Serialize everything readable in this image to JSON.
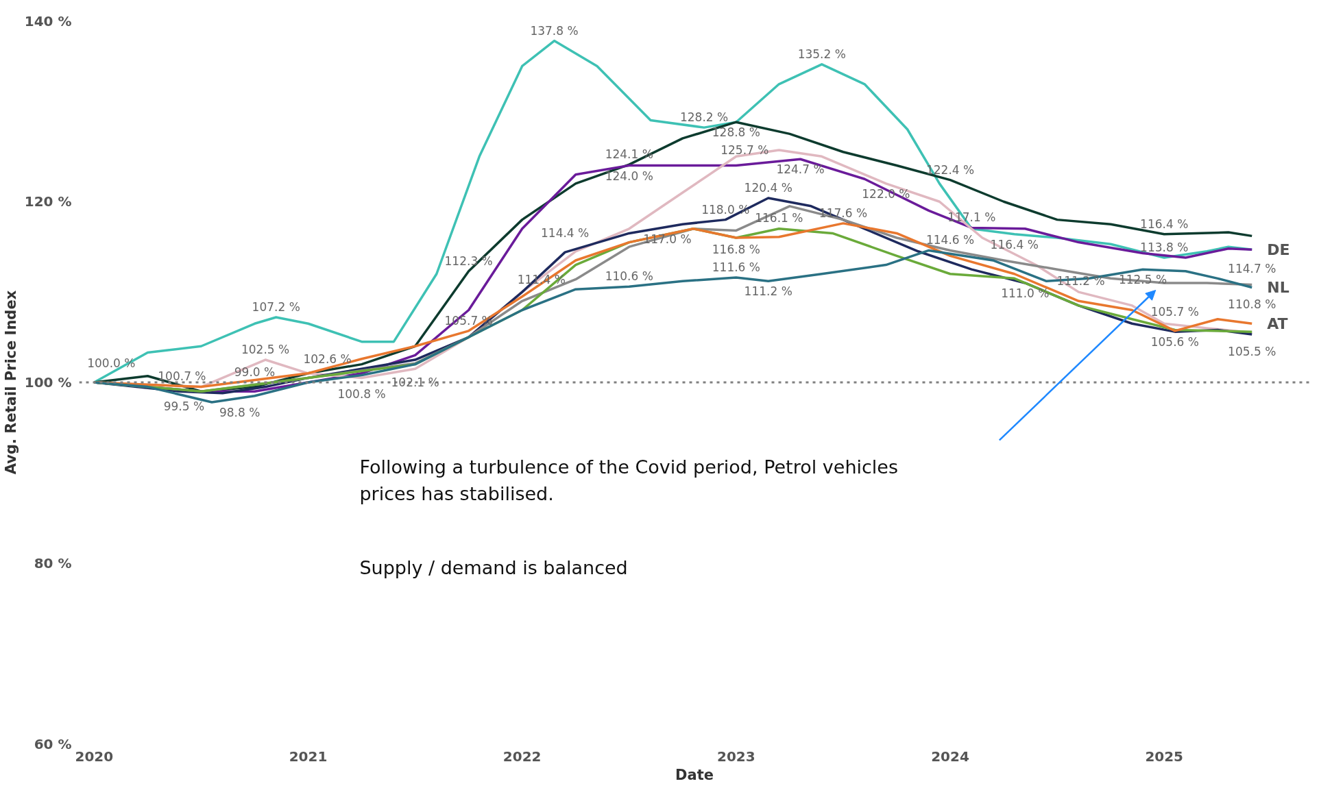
{
  "chart_data": {
    "type": "line",
    "xlabel": "Date",
    "ylabel": "Avg. Retail Price Index",
    "xlim": [
      2019.93,
      2025.68
    ],
    "xticks": [
      2020,
      2021,
      2022,
      2023,
      2024,
      2025
    ],
    "ylim": [
      60,
      140
    ],
    "yticks": [
      {
        "value": 60,
        "label": "60 %"
      },
      {
        "value": 80,
        "label": "80 %"
      },
      {
        "value": 100,
        "label": "100 %"
      },
      {
        "value": 120,
        "label": "120 %"
      },
      {
        "value": 140,
        "label": "140 %"
      }
    ],
    "grid": false,
    "marker": "none",
    "line_style": "solid",
    "ref_lines": [
      {
        "axis": "y",
        "value": 100,
        "color": "#808080",
        "line_style": "dotted"
      }
    ],
    "series": [
      {
        "name": "DE",
        "color": "#3ec1b4",
        "x": [
          2020,
          2020.25,
          2020.5,
          2020.75,
          2020.85,
          2021,
          2021.25,
          2021.4,
          2021.6,
          2021.8,
          2022,
          2022.15,
          2022.35,
          2022.6,
          2022.85,
          2023.0,
          2023.2,
          2023.4,
          2023.6,
          2023.8,
          2023.95,
          2024.1,
          2024.3,
          2024.5,
          2024.75,
          2025,
          2025.2,
          2025.3,
          2025.41
        ],
        "values": [
          100,
          103.3,
          104,
          106.5,
          107.2,
          106.5,
          104.5,
          104.5,
          112,
          125,
          135,
          137.8,
          135,
          129,
          128.2,
          128.8,
          133,
          135.2,
          133,
          128,
          122,
          117,
          116.4,
          116,
          115.3,
          113.8,
          114.5,
          115,
          114.7
        ],
        "value_labels": [
          "100.0 %",
          null,
          null,
          null,
          "107.2 %",
          null,
          null,
          null,
          null,
          null,
          null,
          "137.8 %",
          null,
          null,
          "128.2 %",
          null,
          null,
          "135.2 %",
          null,
          null,
          null,
          null,
          "116.4 %",
          null,
          null,
          "113.8 %",
          null,
          null,
          "114.7 %"
        ]
      },
      {
        "color": "#0d3b2e",
        "x": [
          2020,
          2020.25,
          2020.5,
          2020.75,
          2021,
          2021.25,
          2021.5,
          2021.75,
          2022,
          2022.25,
          2022.5,
          2022.75,
          2023,
          2023.25,
          2023.5,
          2023.75,
          2024,
          2024.25,
          2024.5,
          2024.75,
          2025,
          2025.3,
          2025.41
        ],
        "values": [
          100,
          100.7,
          99,
          99.5,
          101,
          102,
          104,
          112.3,
          118,
          122,
          124.1,
          127,
          128.8,
          127.5,
          125.5,
          124,
          122.4,
          120,
          118,
          117.5,
          116.4,
          116.6,
          116.2
        ],
        "value_labels": [
          null,
          "100.7 %",
          null,
          null,
          null,
          null,
          null,
          "112.3 %",
          null,
          null,
          "124.1 %",
          null,
          "128.8 %",
          null,
          null,
          null,
          "122.4 %",
          null,
          null,
          null,
          "116.4 %",
          null,
          null
        ]
      },
      {
        "color": "#6a1b9a",
        "x": [
          2020,
          2020.5,
          2020.75,
          2021,
          2021.25,
          2021.5,
          2021.75,
          2022,
          2022.25,
          2022.5,
          2022.75,
          2023,
          2023.3,
          2023.6,
          2023.9,
          2024.1,
          2024.35,
          2024.6,
          2024.9,
          2025.1,
          2025.3,
          2025.41
        ],
        "values": [
          100,
          99,
          99.0,
          100,
          101,
          103,
          108,
          117,
          123,
          124.0,
          124,
          124,
          124.7,
          122.5,
          119,
          117.1,
          117,
          115.5,
          114.3,
          113.8,
          114.8,
          114.7
        ],
        "value_labels": [
          null,
          null,
          "99.0 %",
          null,
          null,
          null,
          null,
          null,
          null,
          "124.0 %",
          null,
          null,
          "124.7 %",
          null,
          null,
          "117.1 %",
          null,
          null,
          null,
          null,
          null,
          null
        ]
      },
      {
        "color": "#e0b8c0",
        "x": [
          2020,
          2020.5,
          2020.8,
          2021,
          2021.25,
          2021.5,
          2021.75,
          2022,
          2022.25,
          2022.5,
          2022.75,
          2023,
          2023.2,
          2023.4,
          2023.7,
          2023.95,
          2024.15,
          2024.4,
          2024.6,
          2024.85,
          2025,
          2025.2,
          2025.41
        ],
        "values": [
          100,
          99.5,
          102.5,
          101,
          100.5,
          101.5,
          105,
          110,
          114.5,
          117,
          121,
          125,
          125.7,
          125,
          122.0,
          120,
          116,
          113,
          110,
          108.5,
          106.5,
          106,
          105.5
        ],
        "value_labels": [
          null,
          "99.5 %",
          "102.5 %",
          null,
          null,
          null,
          null,
          null,
          null,
          null,
          null,
          null,
          "125.7 %",
          null,
          "122.0 %",
          null,
          null,
          null,
          null,
          null,
          null,
          null,
          "105.5 %"
        ]
      },
      {
        "color": "#1e2a5e",
        "x": [
          2020,
          2020.4,
          2020.6,
          2020.8,
          2021,
          2021.25,
          2021.5,
          2021.75,
          2022,
          2022.2,
          2022.5,
          2022.75,
          2022.95,
          2023.15,
          2023.35,
          2023.6,
          2023.85,
          2024.1,
          2024.35,
          2024.6,
          2024.85,
          2025.05,
          2025.25,
          2025.41
        ],
        "values": [
          100,
          99,
          98.8,
          99.5,
          100.5,
          101.5,
          102.5,
          105,
          110,
          114.4,
          116.5,
          117.5,
          118.0,
          120.4,
          119.5,
          117,
          114.5,
          112.5,
          111.0,
          108.5,
          106.5,
          105.6,
          105.8,
          105.3
        ],
        "value_labels": [
          null,
          null,
          "98.8 %",
          null,
          null,
          null,
          null,
          null,
          null,
          "114.4 %",
          null,
          null,
          "118.0 %",
          "120.4 %",
          null,
          null,
          null,
          null,
          "111.0 %",
          null,
          null,
          "105.6 %",
          null,
          null
        ]
      },
      {
        "color": "#8a8a8a",
        "x": [
          2020,
          2020.5,
          2021,
          2021.5,
          2021.75,
          2022,
          2022.25,
          2022.5,
          2022.8,
          2023,
          2023.25,
          2023.5,
          2023.75,
          2024,
          2024.25,
          2024.5,
          2024.75,
          2025,
          2025.2,
          2025.41
        ],
        "values": [
          100,
          99,
          100.5,
          102.1,
          105,
          109,
          111.4,
          115,
          117,
          116.8,
          119.5,
          118,
          116,
          114.6,
          113.5,
          112.5,
          111.5,
          111,
          111,
          110.8
        ],
        "value_labels": [
          null,
          null,
          null,
          "102.1 %",
          null,
          null,
          "111.4 %",
          null,
          null,
          "116.8 %",
          null,
          null,
          null,
          "114.6 %",
          null,
          null,
          null,
          null,
          null,
          "110.8 %"
        ]
      },
      {
        "color": "#6aaa3a",
        "x": [
          2020,
          2020.5,
          2021,
          2021.5,
          2021.75,
          2022,
          2022.25,
          2022.5,
          2022.8,
          2023,
          2023.2,
          2023.45,
          2023.75,
          2024,
          2024.3,
          2024.6,
          2024.85,
          2025.05,
          2025.41
        ],
        "values": [
          100,
          99,
          100.5,
          102,
          105,
          108,
          113,
          115.5,
          117.0,
          116,
          117,
          116.5,
          114,
          112,
          111.5,
          108.5,
          107,
          105.8,
          105.6
        ],
        "value_labels": [
          null,
          null,
          null,
          null,
          null,
          null,
          null,
          null,
          "117.0 %",
          null,
          null,
          null,
          null,
          null,
          null,
          null,
          null,
          null,
          null
        ]
      },
      {
        "name": "AT",
        "color": "#e8772e",
        "x": [
          2020,
          2020.5,
          2021,
          2021.25,
          2021.5,
          2021.75,
          2022,
          2022.25,
          2022.5,
          2022.8,
          2023,
          2023.2,
          2023.5,
          2023.75,
          2024,
          2024.3,
          2024.6,
          2024.85,
          2025.05,
          2025.25,
          2025.41
        ],
        "values": [
          100,
          99.5,
          101,
          102.6,
          104,
          105.7,
          109.5,
          113.5,
          115.5,
          117,
          116,
          116.1,
          117.6,
          116.5,
          114,
          112,
          109,
          108,
          105.7,
          107,
          106.5
        ],
        "value_labels": [
          null,
          null,
          null,
          "102.6 %",
          null,
          "105.7 %",
          null,
          null,
          null,
          null,
          null,
          "116.1 %",
          "117.6 %",
          null,
          null,
          null,
          null,
          null,
          "105.7 %",
          null,
          null
        ]
      },
      {
        "name": "NL",
        "color": "#2a7184",
        "x": [
          2020,
          2020.25,
          2020.55,
          2020.75,
          2021,
          2021.25,
          2021.5,
          2021.75,
          2022,
          2022.25,
          2022.5,
          2022.75,
          2023,
          2023.15,
          2023.4,
          2023.7,
          2023.9,
          2024.2,
          2024.45,
          2024.65,
          2024.9,
          2025.1,
          2025.25,
          2025.41
        ],
        "values": [
          100,
          99.5,
          97.8,
          98.5,
          100,
          100.8,
          102,
          105,
          108,
          110.3,
          110.6,
          111.2,
          111.6,
          111.2,
          112,
          113,
          114.6,
          113.5,
          111.2,
          111.5,
          112.5,
          112.3,
          111.5,
          110.5
        ],
        "value_labels": [
          null,
          null,
          null,
          null,
          null,
          "100.8 %",
          null,
          null,
          null,
          null,
          "110.6 %",
          null,
          "111.6 %",
          "111.2 %",
          null,
          null,
          null,
          null,
          "111.2 %",
          null,
          "112.5 %",
          null,
          null,
          null
        ]
      }
    ],
    "annotations": [
      "Following a turbulence of the Covid period, Petrol vehicles prices has stabilised.",
      "Supply / demand is balanced"
    ]
  }
}
